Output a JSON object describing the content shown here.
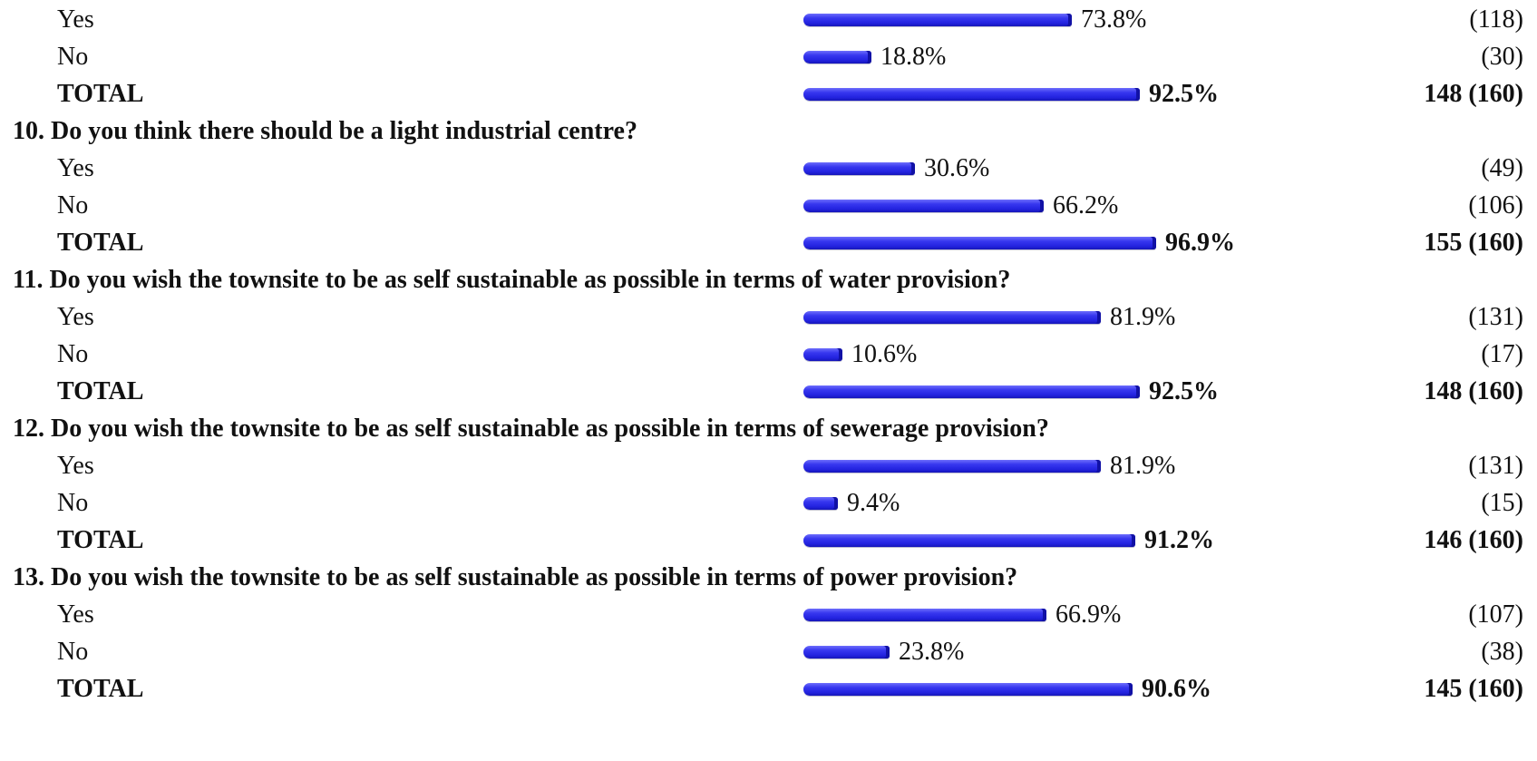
{
  "colors": {
    "bar": "#2f2fe6",
    "text": "#111111",
    "background": "#ffffff"
  },
  "chart_data": {
    "type": "bar",
    "orientation": "horizontal",
    "value_unit": "%",
    "sections": [
      {
        "question": "",
        "rows": [
          {
            "label": "Yes",
            "value": 73.8,
            "value_text": "73.8%",
            "count_text": "(118)",
            "total": false
          },
          {
            "label": "No",
            "value": 18.8,
            "value_text": "18.8%",
            "count_text": "(30)",
            "total": false
          },
          {
            "label": "TOTAL",
            "value": 92.5,
            "value_text": "92.5%",
            "count_text": "148 (160)",
            "total": true
          }
        ]
      },
      {
        "question": "10. Do you think there should be a light industrial centre?",
        "rows": [
          {
            "label": "Yes",
            "value": 30.6,
            "value_text": "30.6%",
            "count_text": "(49)",
            "total": false
          },
          {
            "label": "No",
            "value": 66.2,
            "value_text": "66.2%",
            "count_text": "(106)",
            "total": false
          },
          {
            "label": "TOTAL",
            "value": 96.9,
            "value_text": "96.9%",
            "count_text": "155 (160)",
            "total": true
          }
        ]
      },
      {
        "question": "11. Do you wish the townsite to be as self sustainable as possible in terms of water provision?",
        "rows": [
          {
            "label": "Yes",
            "value": 81.9,
            "value_text": "81.9%",
            "count_text": "(131)",
            "total": false
          },
          {
            "label": "No",
            "value": 10.6,
            "value_text": "10.6%",
            "count_text": "(17)",
            "total": false
          },
          {
            "label": "TOTAL",
            "value": 92.5,
            "value_text": "92.5%",
            "count_text": "148 (160)",
            "total": true
          }
        ]
      },
      {
        "question": "12. Do you wish the townsite to be as self sustainable as possible in terms of sewerage provision?",
        "rows": [
          {
            "label": "Yes",
            "value": 81.9,
            "value_text": "81.9%",
            "count_text": "(131)",
            "total": false
          },
          {
            "label": "No",
            "value": 9.4,
            "value_text": "9.4%",
            "count_text": "(15)",
            "total": false
          },
          {
            "label": "TOTAL",
            "value": 91.2,
            "value_text": "91.2%",
            "count_text": "146 (160)",
            "total": true
          }
        ]
      },
      {
        "question": "13. Do you wish the townsite to be as self sustainable as possible in terms of power provision?",
        "rows": [
          {
            "label": "Yes",
            "value": 66.9,
            "value_text": "66.9%",
            "count_text": "(107)",
            "total": false
          },
          {
            "label": "No",
            "value": 23.8,
            "value_text": "23.8%",
            "count_text": "(38)",
            "total": false
          },
          {
            "label": "TOTAL",
            "value": 90.6,
            "value_text": "90.6%",
            "count_text": "145 (160)",
            "total": true
          }
        ]
      }
    ]
  }
}
